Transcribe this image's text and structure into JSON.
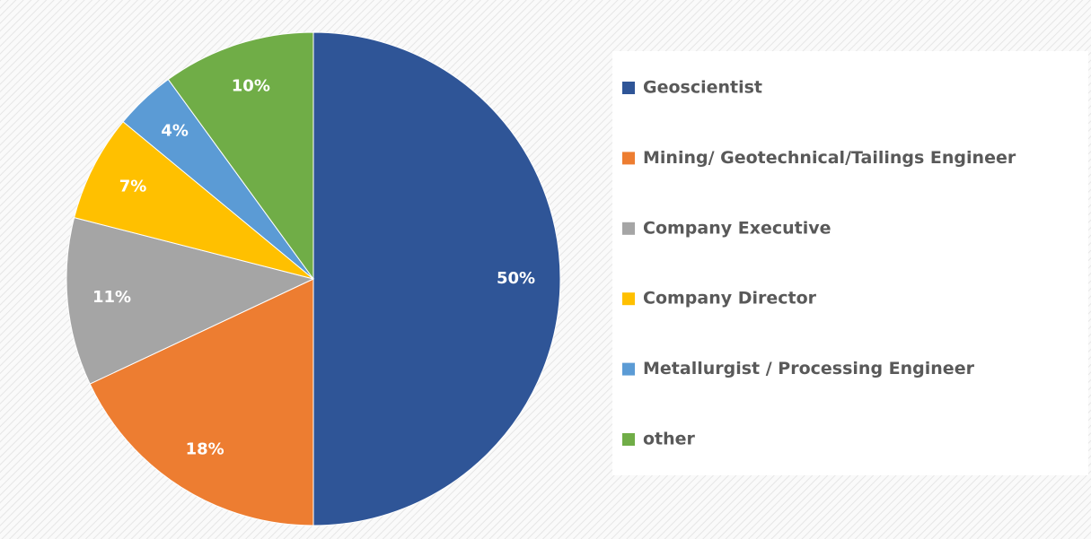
{
  "chart_data": {
    "type": "pie",
    "categories": [
      "Geoscientist",
      "Mining/ Geotechnical/Tailings Engineer",
      "Company Executive",
      "Company Director",
      "Metallurgist / Processing Engineer",
      "other"
    ],
    "values": [
      50,
      18,
      11,
      7,
      4,
      10
    ],
    "value_labels": [
      "50%",
      "18%",
      "11%",
      "7%",
      "4%",
      "10%"
    ],
    "colors": [
      "#2f5597",
      "#ed7d31",
      "#a5a5a5",
      "#ffc000",
      "#5b9bd5",
      "#70ad47"
    ],
    "legend": "right"
  }
}
